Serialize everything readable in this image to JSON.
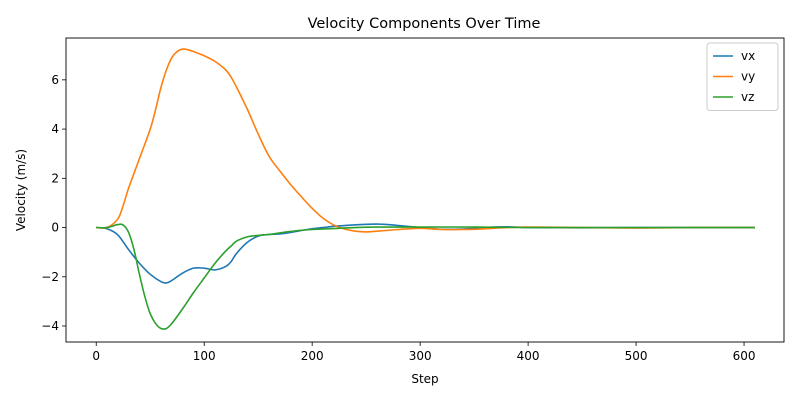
{
  "chart_data": {
    "type": "line",
    "title": "Velocity Components Over Time",
    "xlabel": "Step",
    "ylabel": "Velocity (m/s)",
    "xlim": [
      -28,
      637
    ],
    "ylim": [
      -4.65,
      7.7
    ],
    "xticks": [
      0,
      100,
      200,
      300,
      400,
      500,
      600
    ],
    "yticks": [
      -4,
      -2,
      0,
      2,
      4,
      6
    ],
    "grid": false,
    "legend_position": "top-right",
    "series": [
      {
        "name": "vx",
        "color": "#1f77b4",
        "x": [
          0,
          10,
          20,
          30,
          40,
          50,
          60,
          65,
          70,
          80,
          90,
          100,
          110,
          120,
          125,
          130,
          140,
          150,
          160,
          170,
          180,
          190,
          200,
          210,
          220,
          230,
          240,
          250,
          260,
          270,
          280,
          290,
          300,
          320,
          340,
          360,
          380,
          400,
          450,
          500,
          550,
          610
        ],
        "y": [
          0,
          -0.05,
          -0.3,
          -0.9,
          -1.45,
          -1.9,
          -2.2,
          -2.25,
          -2.15,
          -1.85,
          -1.65,
          -1.65,
          -1.72,
          -1.58,
          -1.38,
          -1.05,
          -0.6,
          -0.35,
          -0.28,
          -0.26,
          -0.2,
          -0.12,
          -0.05,
          0.0,
          0.05,
          0.08,
          0.11,
          0.13,
          0.14,
          0.12,
          0.08,
          0.04,
          0.0,
          -0.07,
          -0.06,
          0.0,
          0.03,
          0.0,
          -0.01,
          0.0,
          0.0,
          0.0
        ]
      },
      {
        "name": "vy",
        "color": "#ff7f0e",
        "x": [
          0,
          10,
          20,
          25,
          30,
          40,
          50,
          55,
          60,
          65,
          70,
          75,
          80,
          85,
          90,
          100,
          110,
          120,
          125,
          130,
          140,
          150,
          160,
          170,
          180,
          190,
          200,
          210,
          220,
          230,
          240,
          250,
          260,
          280,
          300,
          320,
          340,
          360,
          380,
          400,
          450,
          500,
          550,
          610
        ],
        "y": [
          0,
          0.0,
          0.35,
          0.9,
          1.6,
          2.8,
          4.0,
          4.8,
          5.7,
          6.4,
          6.9,
          7.15,
          7.25,
          7.22,
          7.15,
          6.98,
          6.75,
          6.4,
          6.1,
          5.7,
          4.8,
          3.8,
          2.9,
          2.3,
          1.75,
          1.25,
          0.78,
          0.38,
          0.1,
          -0.06,
          -0.15,
          -0.18,
          -0.15,
          -0.08,
          -0.03,
          -0.08,
          -0.08,
          -0.05,
          0.0,
          0.02,
          0.0,
          -0.02,
          0.0,
          0.0
        ]
      },
      {
        "name": "vz",
        "color": "#2ca02c",
        "x": [
          0,
          10,
          20,
          25,
          30,
          35,
          40,
          45,
          50,
          55,
          60,
          65,
          70,
          80,
          90,
          100,
          110,
          120,
          125,
          130,
          140,
          150,
          160,
          170,
          180,
          190,
          200,
          220,
          240,
          260,
          280,
          300,
          350,
          400,
          450,
          500,
          550,
          610
        ],
        "y": [
          0,
          0.0,
          0.12,
          0.1,
          -0.2,
          -0.9,
          -1.9,
          -2.8,
          -3.5,
          -3.9,
          -4.1,
          -4.1,
          -3.9,
          -3.3,
          -2.65,
          -2.05,
          -1.45,
          -0.95,
          -0.75,
          -0.55,
          -0.38,
          -0.32,
          -0.28,
          -0.22,
          -0.16,
          -0.11,
          -0.08,
          -0.04,
          0.0,
          0.02,
          0.02,
          0.02,
          0.02,
          0.0,
          0.0,
          0.0,
          0.0,
          0.0
        ]
      }
    ]
  }
}
